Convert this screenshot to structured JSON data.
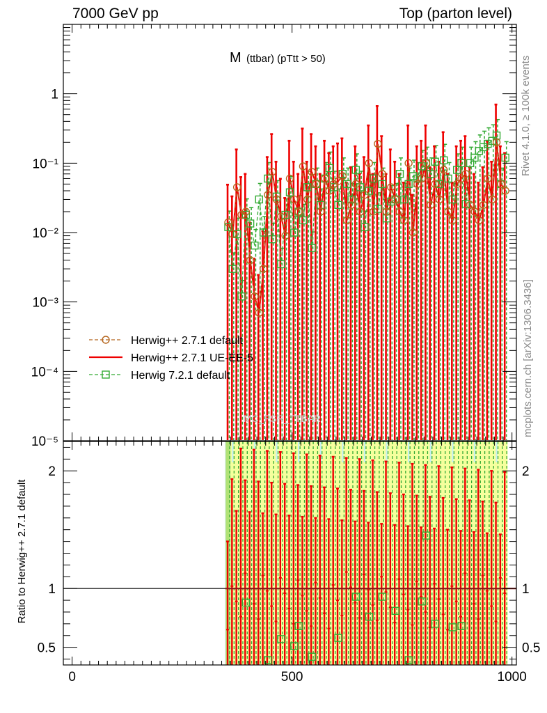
{
  "header": {
    "left": "7000 GeV pp",
    "right": "Top (parton level)"
  },
  "side_labels": {
    "rivet": "Rivet 4.1.0, ≥ 100k events",
    "mcplots": "mcplots.cern.ch [arXiv:1306.3436]"
  },
  "colors": {
    "herwigpp_default": "#b5651d",
    "herwigpp_ueee5": "#ee0000",
    "herwig72_default": "#33aa33",
    "band_yellow": "#f5ff9c",
    "band_cyan": "#c8f0f0"
  },
  "chart_data": {
    "type": "line",
    "title_main": "M",
    "title_sub": "(ttbar) (pTtt > 50)",
    "watermark": "MC_FSR_TTBAR",
    "xlim": [
      -20,
      1010
    ],
    "ylim": [
      1e-05,
      10
    ],
    "x_ticks": [
      {
        "value": 0,
        "label": "0"
      },
      {
        "value": 500,
        "label": "500"
      },
      {
        "value": 1000,
        "label": "1000"
      }
    ],
    "y_ticks": [
      {
        "value": 1,
        "label": "1"
      },
      {
        "value": 0.1,
        "label": "10⁻¹"
      },
      {
        "value": 0.01,
        "label": "10⁻²"
      },
      {
        "value": 0.001,
        "label": "10⁻³"
      },
      {
        "value": 0.0001,
        "label": "10⁻⁴"
      },
      {
        "value": 1e-05,
        "label": "10⁻⁵"
      }
    ],
    "legend": {
      "placement": "lower-left",
      "entries": [
        {
          "name": "Herwig++ 2.7.1 default",
          "style": "circle-dashed"
        },
        {
          "name": "Herwig++ 2.7.1 UE-EE-5",
          "style": "solid"
        },
        {
          "name": "Herwig 7.2.1 default",
          "style": "square-dashed"
        }
      ]
    },
    "series": [
      {
        "name": "Herwig++ 2.7.1 default",
        "x": [
          355,
          365,
          375,
          385,
          395,
          405,
          415,
          425,
          435,
          445,
          455,
          465,
          475,
          485,
          495,
          505,
          515,
          525,
          535,
          545,
          555,
          565,
          575,
          585,
          595,
          605,
          615,
          625,
          635,
          645,
          655,
          665,
          675,
          685,
          695,
          705,
          715,
          725,
          735,
          745,
          755,
          765,
          775,
          785,
          795,
          805,
          815,
          825,
          835,
          845,
          855,
          865,
          875,
          885,
          895,
          905,
          915,
          925,
          935,
          945,
          955,
          965,
          975,
          985
        ],
        "y": [
          0.014,
          0.0095,
          0.045,
          0.018,
          0.02,
          0.004,
          0.0012,
          0.0007,
          0.003,
          0.035,
          0.075,
          0.03,
          0.017,
          0.009,
          0.06,
          0.03,
          0.02,
          0.09,
          0.03,
          0.075,
          0.05,
          0.02,
          0.06,
          0.04,
          0.05,
          0.055,
          0.065,
          0.015,
          0.025,
          0.05,
          0.02,
          0.035,
          0.1,
          0.02,
          0.19,
          0.07,
          0.02,
          0.045,
          0.03,
          0.02,
          0.015,
          0.1,
          0.01,
          0.05,
          0.06,
          0.1,
          0.025,
          0.05,
          0.03,
          0.08,
          0.02,
          0.015,
          0.05,
          0.06,
          0.07,
          0.025,
          0.02,
          0.015,
          0.025,
          0.06,
          0.03,
          0.2,
          0.05,
          0.04
        ]
      },
      {
        "name": "Herwig++ 2.7.1 UE-EE-5",
        "x": [
          355,
          365,
          375,
          385,
          395,
          405,
          415,
          425,
          435,
          445,
          455,
          465,
          475,
          485,
          495,
          505,
          515,
          525,
          535,
          545,
          555,
          565,
          575,
          585,
          595,
          605,
          615,
          625,
          635,
          645,
          655,
          665,
          675,
          685,
          695,
          705,
          715,
          725,
          735,
          745,
          755,
          765,
          775,
          785,
          795,
          805,
          815,
          825,
          835,
          845,
          855,
          865,
          875,
          885,
          895,
          905,
          915,
          925,
          935,
          945,
          955,
          965,
          975,
          985
        ],
        "y": [
          0.014,
          0.0095,
          0.045,
          0.018,
          0.02,
          0.004,
          0.0012,
          0.0007,
          0.003,
          0.035,
          0.075,
          0.03,
          0.017,
          0.009,
          0.06,
          0.03,
          0.02,
          0.09,
          0.03,
          0.075,
          0.05,
          0.02,
          0.06,
          0.04,
          0.05,
          0.055,
          0.065,
          0.015,
          0.025,
          0.05,
          0.02,
          0.035,
          0.1,
          0.02,
          0.19,
          0.07,
          0.02,
          0.045,
          0.03,
          0.02,
          0.015,
          0.1,
          0.01,
          0.05,
          0.06,
          0.1,
          0.025,
          0.05,
          0.03,
          0.08,
          0.02,
          0.015,
          0.05,
          0.06,
          0.07,
          0.025,
          0.02,
          0.015,
          0.025,
          0.06,
          0.03,
          0.2,
          0.05,
          0.04
        ]
      },
      {
        "name": "Herwig 7.2.1 default",
        "x": [
          355,
          365,
          375,
          385,
          395,
          405,
          415,
          425,
          435,
          445,
          455,
          465,
          475,
          485,
          495,
          505,
          515,
          525,
          535,
          545,
          555,
          565,
          575,
          585,
          595,
          605,
          615,
          625,
          635,
          645,
          655,
          665,
          675,
          685,
          695,
          705,
          715,
          725,
          735,
          745,
          755,
          765,
          775,
          785,
          795,
          805,
          815,
          825,
          835,
          845,
          855,
          865,
          875,
          885,
          895,
          905,
          915,
          925,
          935,
          945,
          955,
          965,
          975,
          985
        ],
        "y": [
          0.012,
          0.003,
          0.0095,
          0.0012,
          0.018,
          0.0135,
          0.0065,
          0.03,
          0.01,
          0.06,
          0.008,
          0.033,
          0.0035,
          0.018,
          0.038,
          0.01,
          0.02,
          0.015,
          0.045,
          0.006,
          0.05,
          0.025,
          0.06,
          0.085,
          0.045,
          0.025,
          0.07,
          0.05,
          0.03,
          0.08,
          0.045,
          0.012,
          0.04,
          0.06,
          0.022,
          0.05,
          0.016,
          0.028,
          0.03,
          0.07,
          0.03,
          0.05,
          0.065,
          0.06,
          0.09,
          0.1,
          0.07,
          0.105,
          0.05,
          0.11,
          0.06,
          0.03,
          0.08,
          0.1,
          0.026,
          0.1,
          0.12,
          0.15,
          0.17,
          0.19,
          0.21,
          0.25,
          0.05,
          0.12
        ]
      }
    ],
    "ratio": {
      "ylabel": "Ratio to Herwig++ 2.7.1 default",
      "ylim": [
        0.35,
        2.25
      ],
      "y_ticks": [
        {
          "value": 0.5,
          "label": "0.5"
        },
        {
          "value": 1,
          "label": "1"
        },
        {
          "value": 2,
          "label": "2"
        }
      ],
      "reference": 1.0,
      "green_x": [
        395,
        445,
        475,
        505,
        515,
        545,
        605,
        645,
        675,
        705,
        735,
        765,
        795,
        805,
        825,
        865,
        885
      ],
      "green_y": [
        0.88,
        0.39,
        0.57,
        0.51,
        0.68,
        0.42,
        0.58,
        0.93,
        0.76,
        0.93,
        0.81,
        0.39,
        0.89,
        1.45,
        0.7,
        0.67,
        0.68
      ]
    }
  }
}
